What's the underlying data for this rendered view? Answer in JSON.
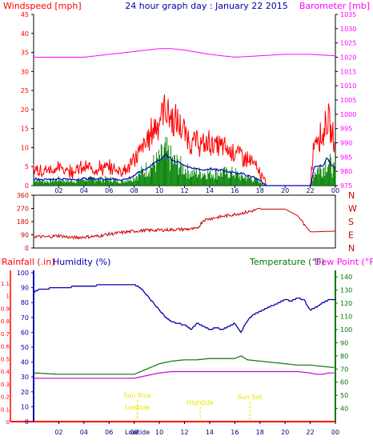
{
  "colors": {
    "wind": "#ff0000",
    "gust": "#0000c0",
    "wind_avg": "#008000",
    "barometer": "#ff00ff",
    "direction": "#cc0000",
    "rain": "#ff0000",
    "humidity": "#0000aa",
    "temperature": "#007700",
    "dewpoint": "#cc00cc",
    "sun": "#e6e600",
    "axis": "#000000"
  },
  "chart_data": [
    {
      "type": "line",
      "title": "24 hour graph day : January 22 2015",
      "left_label": "Windspeed [mph]",
      "right_label": "Barometer [mb]",
      "x_ticks": [
        "02",
        "04",
        "06",
        "08",
        "10",
        "12",
        "14",
        "16",
        "18",
        "20",
        "22",
        "00"
      ],
      "y_ticks": [
        "0",
        "5",
        "10",
        "15",
        "20",
        "25",
        "30",
        "35",
        "40",
        "45"
      ],
      "ylim": [
        0,
        45
      ],
      "y2_ticks": [
        "975",
        "980",
        "985",
        "990",
        "995",
        "1000",
        "1005",
        "1010",
        "1015",
        "1020",
        "1025",
        "1030",
        "1035"
      ],
      "y2lim": [
        975,
        1035
      ],
      "series": [
        {
          "key": "gust",
          "x": [
            0,
            1,
            2,
            3,
            4,
            5,
            6,
            7,
            7.5,
            8,
            8.5,
            9,
            9.5,
            10,
            10.5,
            11,
            11.5,
            12,
            12.5,
            13,
            13.5,
            14,
            14.5,
            15,
            15.5,
            16,
            16.5,
            17,
            17.5,
            18,
            18.5,
            22,
            22.3,
            22.6,
            23,
            23.3,
            23.6,
            24
          ],
          "y": [
            4,
            3.5,
            4,
            3.5,
            4,
            4,
            4,
            3.5,
            4,
            6,
            8,
            10,
            13,
            15,
            18,
            15,
            14,
            12,
            10,
            10,
            9,
            10,
            9,
            9,
            8,
            8,
            7,
            6,
            5,
            3,
            0,
            0,
            10,
            12,
            11,
            16,
            13,
            9
          ]
        },
        {
          "key": "wind_avg",
          "x": [
            0,
            1,
            2,
            3,
            4,
            5,
            6,
            7,
            7.5,
            8,
            8.5,
            9,
            9.5,
            10,
            10.5,
            11,
            11.5,
            12,
            12.5,
            13,
            13.5,
            14,
            14.5,
            15,
            15.5,
            16,
            16.5,
            17,
            17.5,
            18,
            18.5,
            22,
            22.3,
            22.6,
            23,
            23.3,
            23.6,
            24
          ],
          "y": [
            1.5,
            1,
            1.5,
            1,
            1.5,
            1.5,
            1.5,
            1,
            1.5,
            2,
            3,
            4,
            5,
            6,
            8,
            6,
            5,
            4,
            3,
            3,
            3,
            3,
            3,
            3,
            3,
            3,
            2,
            2,
            1.5,
            1,
            0,
            0,
            3,
            4,
            4,
            6,
            5,
            3
          ]
        },
        {
          "key": "barometer",
          "x": [
            0,
            2,
            4,
            6,
            8,
            10,
            11,
            12,
            14,
            16,
            18,
            20,
            22,
            24
          ],
          "y": [
            1020,
            1020,
            1020,
            1021,
            1022,
            1023,
            1023,
            1022.5,
            1021,
            1020,
            1020.5,
            1021,
            1021,
            1020.5
          ]
        }
      ]
    },
    {
      "type": "line",
      "right_labels": [
        "N",
        "W",
        "S",
        "E",
        "N"
      ],
      "y_ticks": [
        "0",
        "90",
        "180",
        "270",
        "360"
      ],
      "ylim": [
        0,
        360
      ],
      "series": [
        {
          "key": "direction",
          "x": [
            0,
            1,
            2,
            3,
            4,
            5,
            6,
            7,
            8,
            9,
            10,
            11,
            12,
            13,
            13.5,
            14,
            15,
            16,
            17,
            18,
            19,
            20,
            21,
            22,
            23,
            24
          ],
          "y": [
            80,
            75,
            85,
            70,
            75,
            80,
            95,
            105,
            115,
            120,
            122,
            125,
            128,
            130,
            190,
            200,
            215,
            230,
            245,
            265,
            265,
            265,
            220,
            110,
            112,
            115
          ]
        }
      ]
    },
    {
      "type": "line",
      "left_label": "Rainfall (.in)",
      "mid_label": "Humidity (%)",
      "right_label_a": "Temperature (°F)",
      "right_label_b": "Dew Point (°F)",
      "x_ticks": [
        "02",
        "04",
        "06",
        "08",
        "10",
        "12",
        "14",
        "16",
        "18",
        "20",
        "22",
        "00"
      ],
      "rain_ticks": [
        "0",
        "0.1",
        "0.2",
        "0.3",
        "0.4",
        "0.5",
        "0.6",
        "0.7",
        "0.8",
        "0.9",
        "1",
        "1.1"
      ],
      "humidity_ticks": [
        "0",
        "10",
        "20",
        "30",
        "40",
        "50",
        "60",
        "70",
        "80",
        "90",
        "100"
      ],
      "temp_ticks": [
        "40",
        "50",
        "60",
        "70",
        "80",
        "90",
        "100",
        "110",
        "120",
        "130",
        "140"
      ],
      "templim": [
        30,
        145
      ],
      "events": [
        {
          "label": "Sun Rise",
          "x": 8.25
        },
        {
          "label": "Lowtide",
          "x": 8.25
        },
        {
          "label": "Hightide",
          "x": 13.25
        },
        {
          "label": "Sun Set",
          "x": 17.2
        }
      ],
      "low_tick_label": "Lowtide",
      "series": [
        {
          "key": "humidity",
          "x": [
            0,
            0.5,
            2,
            4,
            6,
            8,
            8.5,
            9,
            9.5,
            10,
            10.5,
            11,
            11.5,
            12,
            12.5,
            13,
            13.5,
            14,
            14.5,
            15,
            15.5,
            16,
            16.5,
            17,
            17.5,
            18,
            18.5,
            19,
            19.5,
            20,
            20.5,
            21,
            21.5,
            22,
            22.5,
            23,
            23.5,
            24
          ],
          "y": [
            87,
            89,
            90,
            91,
            92,
            92,
            90,
            85,
            80,
            75,
            70,
            67,
            66,
            65,
            62,
            66,
            64,
            62,
            63,
            62,
            64,
            66,
            60,
            68,
            72,
            74,
            76,
            78,
            80,
            82,
            81,
            83,
            82,
            75,
            77,
            80,
            82,
            82
          ]
        },
        {
          "key": "temperature",
          "x": [
            0,
            2,
            4,
            6,
            8,
            9,
            10,
            11,
            12,
            13,
            14,
            15,
            16,
            16.5,
            17,
            18,
            19,
            20,
            21,
            22,
            23,
            24
          ],
          "y": [
            67,
            66,
            66,
            66,
            66,
            70,
            74,
            76,
            77,
            77,
            78,
            78,
            78,
            80,
            77,
            76,
            75,
            74,
            73,
            73,
            72,
            71
          ]
        },
        {
          "key": "dewpoint",
          "x": [
            0,
            2,
            4,
            6,
            8,
            9,
            10,
            11,
            12,
            13,
            14,
            15,
            16,
            17,
            18,
            19,
            20,
            21,
            22,
            22.5,
            23,
            23.5,
            24
          ],
          "y": [
            63,
            63,
            63,
            63,
            63,
            65,
            67,
            68,
            68,
            68,
            68,
            68,
            68,
            68,
            68,
            68,
            68,
            68,
            67,
            66,
            66,
            67,
            67
          ]
        },
        {
          "key": "rain",
          "x": [
            0,
            24
          ],
          "y": [
            0,
            0
          ]
        }
      ]
    }
  ]
}
